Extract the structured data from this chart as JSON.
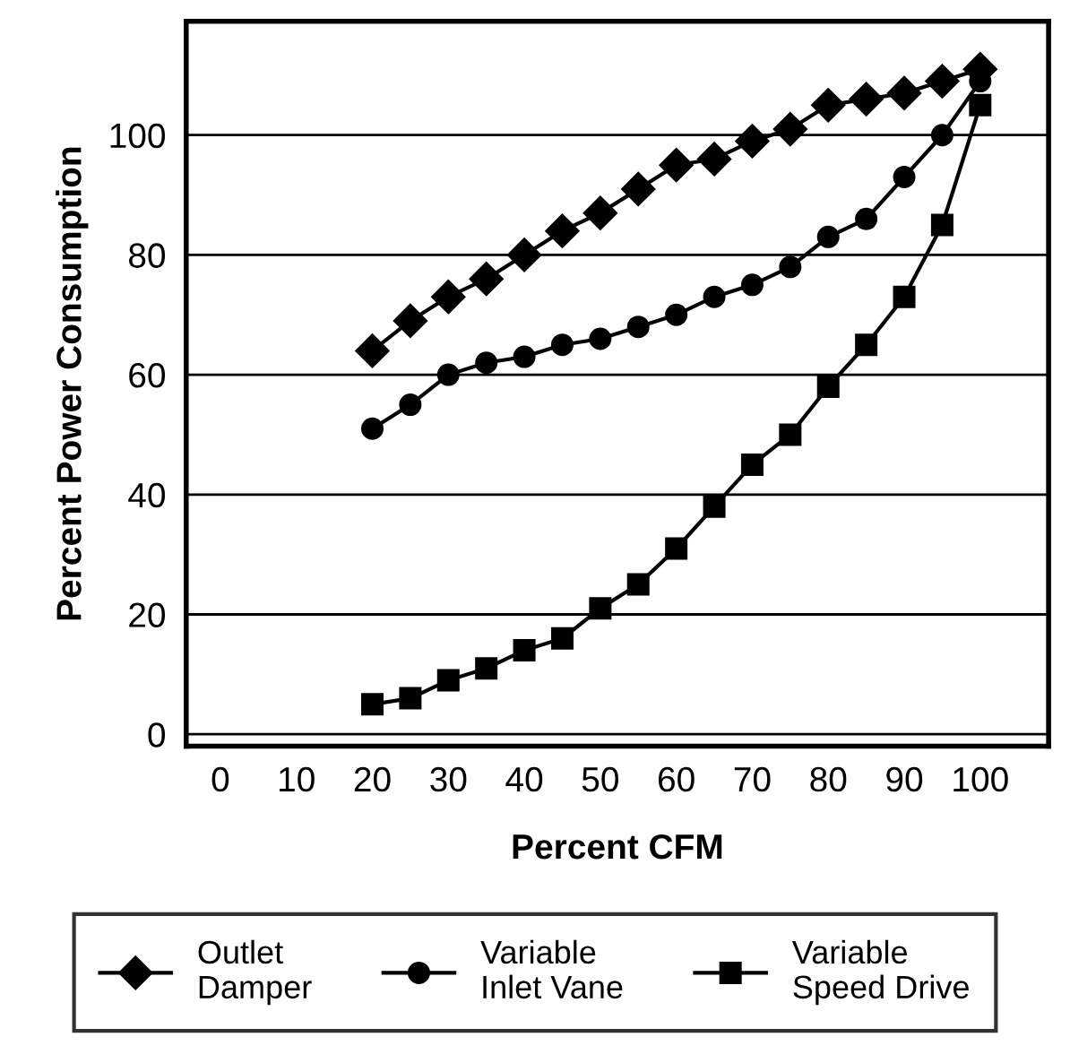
{
  "chart_data": {
    "type": "line",
    "xlabel": "Percent CFM",
    "ylabel": "Percent Power Consumption",
    "x": [
      20,
      25,
      30,
      35,
      40,
      45,
      50,
      55,
      60,
      65,
      70,
      75,
      80,
      85,
      90,
      95,
      100
    ],
    "series": [
      {
        "name": "Outlet\nDamper",
        "color": "#000000",
        "marker": "diamond",
        "values": [
          64,
          69,
          73,
          76,
          80,
          84,
          87,
          91,
          95,
          96,
          99,
          101,
          105,
          106,
          107,
          109,
          111
        ]
      },
      {
        "name": "Variable\nInlet Vane",
        "color": "#000000",
        "marker": "circle",
        "values": [
          51,
          55,
          60,
          62,
          63,
          65,
          66,
          68,
          70,
          73,
          75,
          78,
          83,
          86,
          93,
          100,
          109
        ]
      },
      {
        "name": "Variable\nSpeed Drive",
        "color": "#000000",
        "marker": "square",
        "values": [
          5,
          6,
          9,
          11,
          14,
          16,
          21,
          25,
          31,
          38,
          45,
          50,
          58,
          65,
          73,
          85,
          105
        ]
      }
    ],
    "xlim": [
      -4.5,
      109
    ],
    "xticks": [
      0,
      10,
      20,
      30,
      40,
      50,
      60,
      70,
      80,
      90,
      100
    ],
    "ylim": [
      -2,
      119
    ],
    "yticks": [
      0,
      20,
      40,
      60,
      80,
      100
    ],
    "grid": "y",
    "legend": "bottom",
    "line_style": "solid"
  }
}
